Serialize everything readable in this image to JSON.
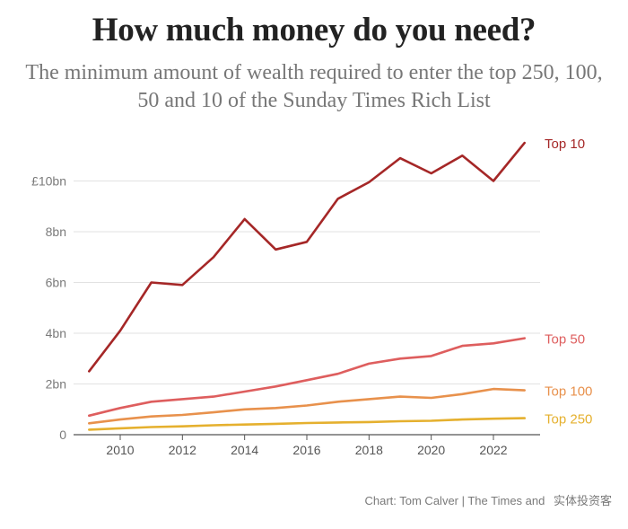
{
  "title": "How much money do you need?",
  "subtitle": "The minimum amount of wealth required to enter the top 250, 100, 50 and 10 of the Sunday Times Rich List",
  "credit": "Chart: Tom Calver | The Times and",
  "watermark": "实体投资客",
  "chart_data": {
    "type": "line",
    "x": [
      2009,
      2010,
      2011,
      2012,
      2013,
      2014,
      2015,
      2016,
      2017,
      2018,
      2019,
      2020,
      2021,
      2022,
      2023
    ],
    "xticks": [
      2010,
      2012,
      2014,
      2016,
      2018,
      2020,
      2022
    ],
    "xlim": [
      2008.5,
      2023.5
    ],
    "ylim": [
      0,
      12
    ],
    "yticks": [
      {
        "value": 0,
        "label": "0"
      },
      {
        "value": 2,
        "label": "2bn"
      },
      {
        "value": 4,
        "label": "4bn"
      },
      {
        "value": 6,
        "label": "6bn"
      },
      {
        "value": 8,
        "label": "8bn"
      },
      {
        "value": 10,
        "label": "£10bn"
      }
    ],
    "grid": true,
    "series": [
      {
        "name": "Top 10",
        "color": "#a52727",
        "values": [
          2.5,
          4.1,
          6.0,
          5.9,
          7.0,
          8.5,
          7.3,
          7.6,
          9.3,
          9.95,
          10.9,
          10.3,
          11.0,
          10.0,
          11.5
        ]
      },
      {
        "name": "Top 50",
        "color": "#de5e5e",
        "values": [
          0.75,
          1.05,
          1.3,
          1.4,
          1.5,
          1.7,
          1.9,
          2.15,
          2.4,
          2.8,
          3.0,
          3.1,
          3.5,
          3.6,
          3.8
        ]
      },
      {
        "name": "Top 100",
        "color": "#e8914c",
        "values": [
          0.45,
          0.6,
          0.72,
          0.78,
          0.88,
          1.0,
          1.05,
          1.15,
          1.3,
          1.4,
          1.5,
          1.45,
          1.6,
          1.8,
          1.75
        ]
      },
      {
        "name": "Top 250",
        "color": "#e5b02e",
        "values": [
          0.2,
          0.25,
          0.3,
          0.33,
          0.37,
          0.4,
          0.43,
          0.46,
          0.48,
          0.5,
          0.53,
          0.55,
          0.6,
          0.63,
          0.65
        ]
      }
    ]
  }
}
